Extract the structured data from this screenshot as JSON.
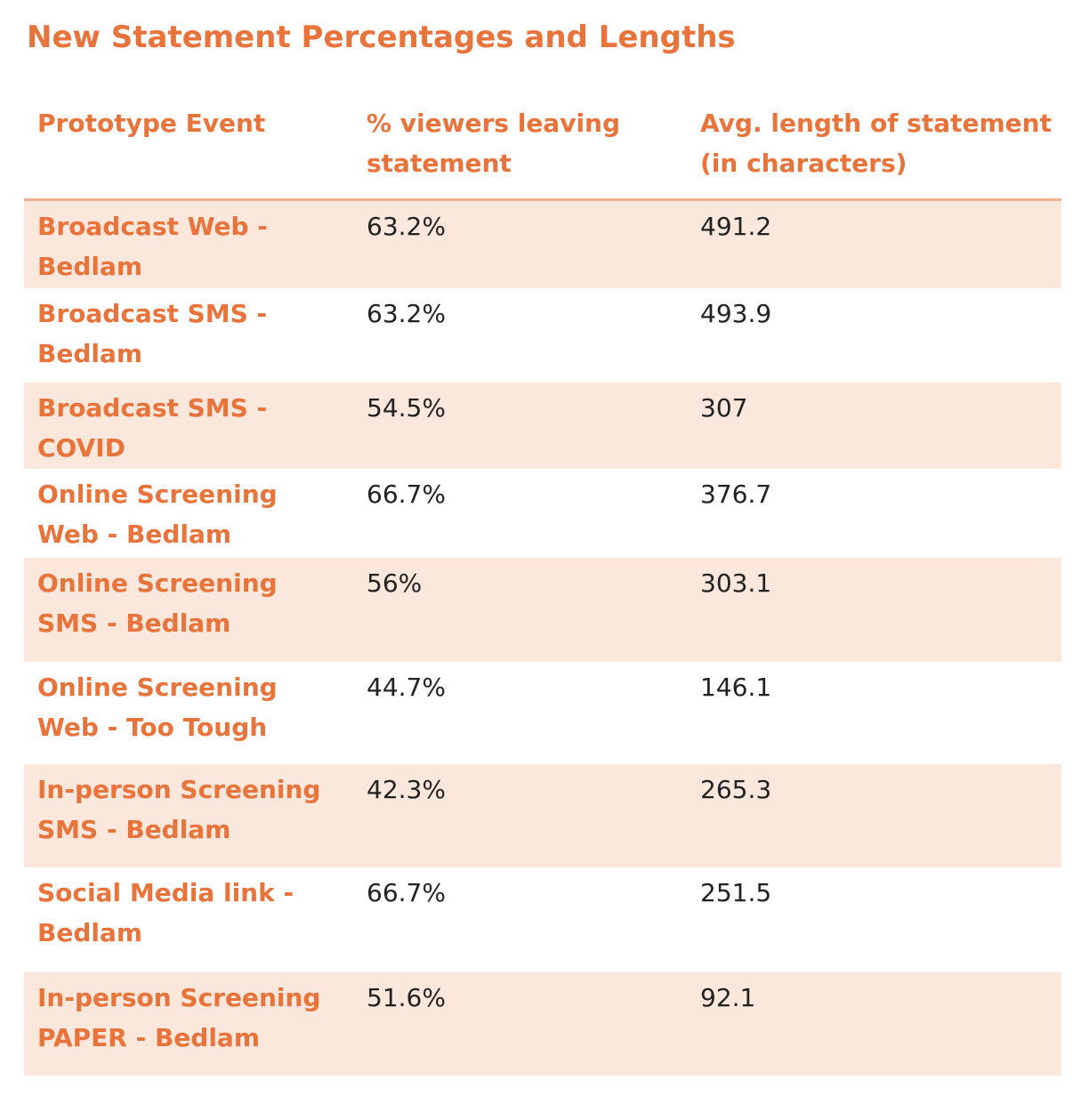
{
  "title": "New Statement Percentages and Lengths",
  "colors": {
    "accent": "#e8743b",
    "row_shade": "#fbe7dc",
    "header_rule": "#f4b191",
    "value_text": "#222222"
  },
  "table": {
    "headers": {
      "event": "Prototype Event",
      "pct_line1": "% viewers leaving",
      "pct_line2": "statement",
      "len_line1": "Avg. length of statement",
      "len_line2": "(in characters)"
    },
    "rows": [
      {
        "event_line1": "Broadcast Web -",
        "event_line2": "Bedlam",
        "pct": "63.2%",
        "len": "491.2",
        "shaded": true
      },
      {
        "event_line1": "Broadcast SMS -",
        "event_line2": "Bedlam",
        "pct": "63.2%",
        "len": "493.9",
        "shaded": false
      },
      {
        "event_line1": "Broadcast SMS -",
        "event_line2": "COVID",
        "pct": "54.5%",
        "len": "307",
        "shaded": true
      },
      {
        "event_line1": "Online Screening",
        "event_line2": "Web - Bedlam",
        "pct": "66.7%",
        "len": "376.7",
        "shaded": false
      },
      {
        "event_line1": "Online Screening",
        "event_line2": "SMS - Bedlam",
        "pct": "56%",
        "len": "303.1",
        "shaded": true
      },
      {
        "event_line1": "Online Screening",
        "event_line2": "Web - Too Tough",
        "pct": "44.7%",
        "len": "146.1",
        "shaded": false
      },
      {
        "event_line1": "In-person Screening",
        "event_line2": "SMS - Bedlam",
        "pct": "42.3%",
        "len": "265.3",
        "shaded": true
      },
      {
        "event_line1": "Social Media link -",
        "event_line2": "Bedlam",
        "pct": "66.7%",
        "len": "251.5",
        "shaded": false
      },
      {
        "event_line1": "In-person Screening",
        "event_line2": "PAPER - Bedlam",
        "pct": "51.6%",
        "len": "92.1",
        "shaded": true
      }
    ]
  }
}
